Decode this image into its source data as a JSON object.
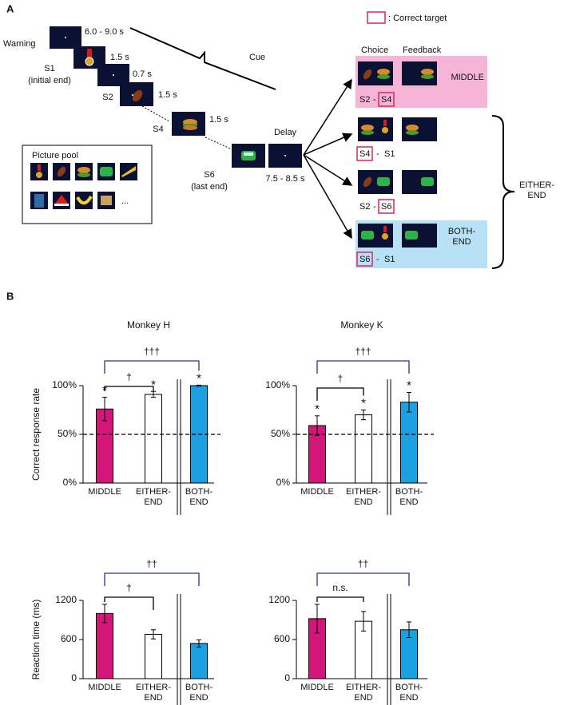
{
  "panel_a": {
    "label": "A",
    "warning": "Warning",
    "timings": [
      "6.0 - 9.0 s",
      "1.5 s",
      "0.7 s",
      "1.5 s",
      "1.5 s"
    ],
    "s1": "S1",
    "s1_note": "(initial end)",
    "s2": "S2",
    "s4": "S4",
    "s6": "S6",
    "s6_note": "(last end)",
    "cue": "Cue",
    "delay": "Delay",
    "delay_time": "7.5 - 8.5 s",
    "pool_title": "Picture pool",
    "pool_more": "...",
    "legend": ": Correct target",
    "choice": "Choice",
    "feedback": "Feedback",
    "separator": "-",
    "trials": [
      {
        "pair": [
          "S2",
          "S4"
        ],
        "result": "MIDDLE"
      },
      {
        "pair": [
          "S4",
          "S1"
        ]
      },
      {
        "pair": [
          "S2",
          "S6"
        ]
      },
      {
        "pair": [
          "S6",
          "S1"
        ],
        "result": "BOTH-\nEND"
      }
    ],
    "either_end": "EITHER-\nEND"
  },
  "panel_b_label": "B",
  "chart_data": [
    {
      "type": "bar",
      "title": "Monkey H",
      "ylabel": "Correct response rate",
      "categories": [
        "MIDDLE",
        "EITHER-\nEND",
        "BOTH-\nEND"
      ],
      "values": [
        76,
        91,
        100
      ],
      "errors": [
        12,
        3,
        0.5
      ],
      "colors": [
        "#d4157a",
        "#ffffff",
        "#1ba1e2"
      ],
      "ylim": [
        0,
        100
      ],
      "yticks": [
        {
          "value": 0,
          "label": "0%"
        },
        {
          "value": 50,
          "label": "50%"
        },
        {
          "value": 100,
          "label": "100%"
        }
      ],
      "reference_line": 50,
      "stars": [
        "*",
        "*",
        "*"
      ],
      "comparisons": [
        {
          "pair": [
            0,
            2
          ],
          "label": "†††",
          "color": "#2e3192"
        },
        {
          "pair": [
            0,
            1
          ],
          "label": "†",
          "color": "#000000"
        }
      ]
    },
    {
      "type": "bar",
      "title": "Monkey K",
      "categories": [
        "MIDDLE",
        "EITHER-\nEND",
        "BOTH-\nEND"
      ],
      "values": [
        59,
        70,
        83
      ],
      "errors": [
        10,
        5,
        10
      ],
      "colors": [
        "#d4157a",
        "#ffffff",
        "#1ba1e2"
      ],
      "ylim": [
        0,
        100
      ],
      "yticks": [
        {
          "value": 0,
          "label": "0%"
        },
        {
          "value": 50,
          "label": "50%"
        },
        {
          "value": 100,
          "label": "100%"
        }
      ],
      "reference_line": 50,
      "stars": [
        "*",
        "*",
        "*"
      ],
      "comparisons": [
        {
          "pair": [
            0,
            2
          ],
          "label": "†††",
          "color": "#2e3192"
        },
        {
          "pair": [
            0,
            1
          ],
          "label": "†",
          "color": "#000000"
        }
      ]
    },
    {
      "type": "bar",
      "ylabel": "Reaction time (ms)",
      "categories": [
        "MIDDLE",
        "EITHER-\nEND",
        "BOTH-\nEND"
      ],
      "values": [
        1000,
        680,
        540
      ],
      "errors": [
        140,
        70,
        55
      ],
      "colors": [
        "#d4157a",
        "#ffffff",
        "#1ba1e2"
      ],
      "ylim": [
        0,
        1200
      ],
      "yticks": [
        0,
        600,
        1200
      ],
      "comparisons": [
        {
          "pair": [
            0,
            2
          ],
          "label": "††",
          "color": "#2e3192"
        },
        {
          "pair": [
            0,
            1
          ],
          "label": "†",
          "color": "#000000"
        }
      ]
    },
    {
      "type": "bar",
      "categories": [
        "MIDDLE",
        "EITHER-\nEND",
        "BOTH-\nEND"
      ],
      "values": [
        920,
        880,
        750
      ],
      "errors": [
        220,
        150,
        120
      ],
      "colors": [
        "#d4157a",
        "#ffffff",
        "#1ba1e2"
      ],
      "ylim": [
        0,
        1200
      ],
      "yticks": [
        0,
        600,
        1200
      ],
      "comparisons": [
        {
          "pair": [
            0,
            2
          ],
          "label": "††",
          "color": "#2e3192"
        },
        {
          "pair": [
            0,
            1
          ],
          "label": "n.s.",
          "color": "#000000"
        }
      ]
    }
  ]
}
